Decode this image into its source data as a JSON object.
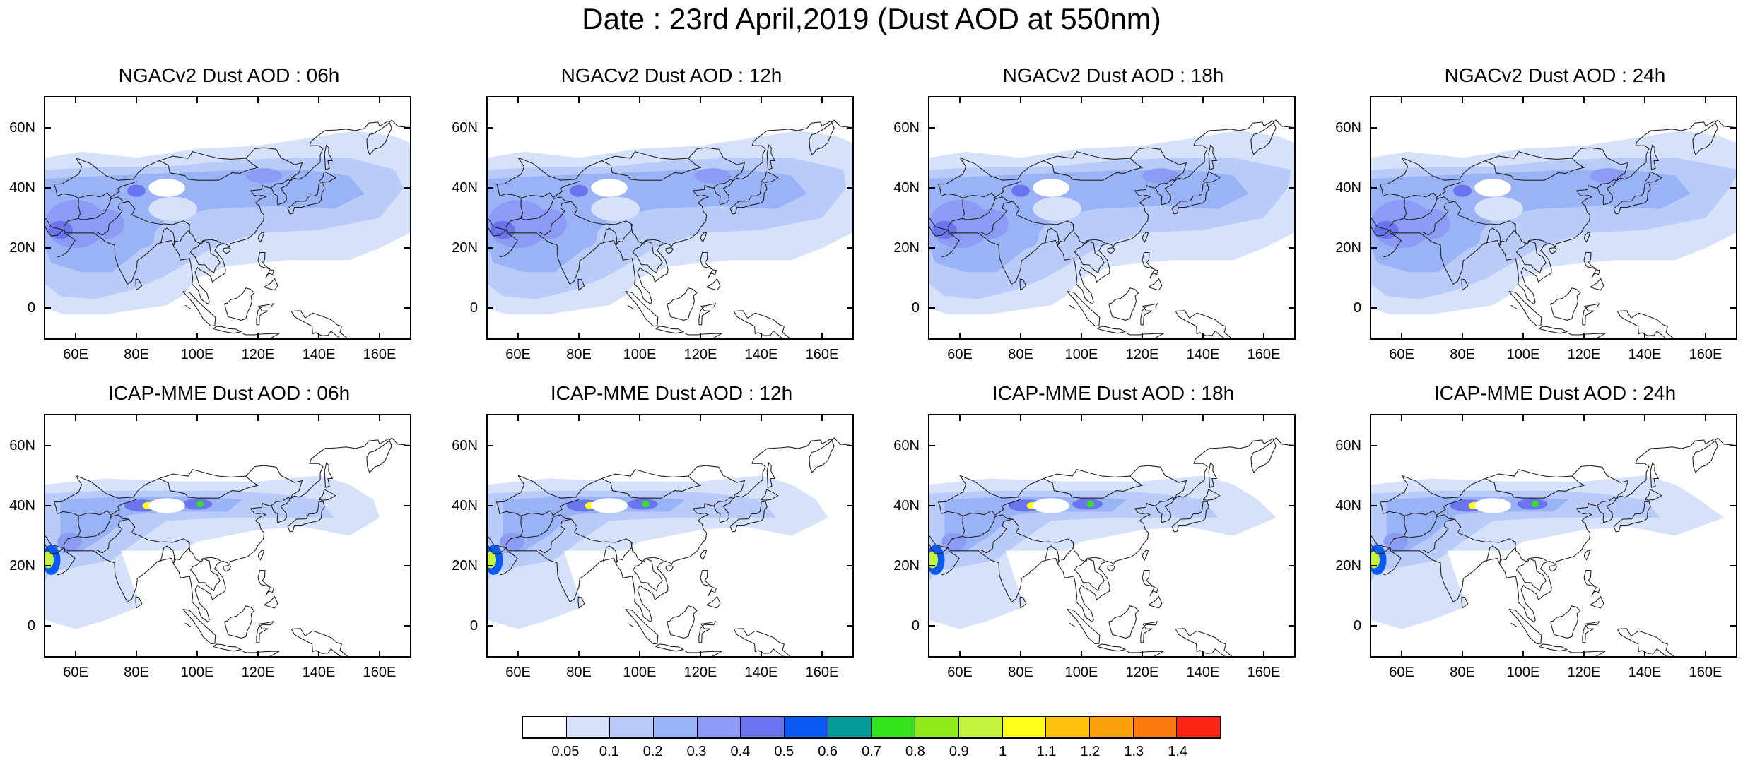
{
  "title": "Date : 23rd April,2019 (Dust AOD at 550nm)",
  "axes": {
    "y_ticks": [
      "60N",
      "40N",
      "20N",
      "0"
    ],
    "x_ticks": [
      "60E",
      "80E",
      "100E",
      "120E",
      "140E",
      "160E"
    ],
    "lat_range": [
      -10,
      70
    ],
    "lon_range": [
      50,
      170
    ]
  },
  "panels": [
    {
      "title": "NGACv2 Dust AOD : 06h",
      "model": "NGACv2",
      "hour": "06h"
    },
    {
      "title": "NGACv2 Dust AOD : 12h",
      "model": "NGACv2",
      "hour": "12h"
    },
    {
      "title": "NGACv2 Dust AOD : 18h",
      "model": "NGACv2",
      "hour": "18h"
    },
    {
      "title": "NGACv2 Dust AOD : 24h",
      "model": "NGACv2",
      "hour": "24h"
    },
    {
      "title": "ICAP-MME Dust AOD : 06h",
      "model": "ICAP-MME",
      "hour": "06h"
    },
    {
      "title": "ICAP-MME Dust AOD : 12h",
      "model": "ICAP-MME",
      "hour": "12h"
    },
    {
      "title": "ICAP-MME Dust AOD : 18h",
      "model": "ICAP-MME",
      "hour": "18h"
    },
    {
      "title": "ICAP-MME Dust AOD : 24h",
      "model": "ICAP-MME",
      "hour": "24h"
    }
  ],
  "colorbar": {
    "labels": [
      "0.05",
      "0.1",
      "0.2",
      "0.3",
      "0.4",
      "0.5",
      "0.6",
      "0.7",
      "0.8",
      "0.9",
      "1",
      "1.1",
      "1.2",
      "1.3",
      "1.4"
    ],
    "colors": [
      "#ffffff",
      "#d6e2fb",
      "#b9cbf8",
      "#9ab2f6",
      "#8c9cf5",
      "#6b74ef",
      "#0a5af5",
      "#049a98",
      "#35e31d",
      "#8fec1a",
      "#c3f33c",
      "#fffd1a",
      "#fdc10e",
      "#fca10b",
      "#fb7b0e",
      "#fb2313"
    ]
  }
}
